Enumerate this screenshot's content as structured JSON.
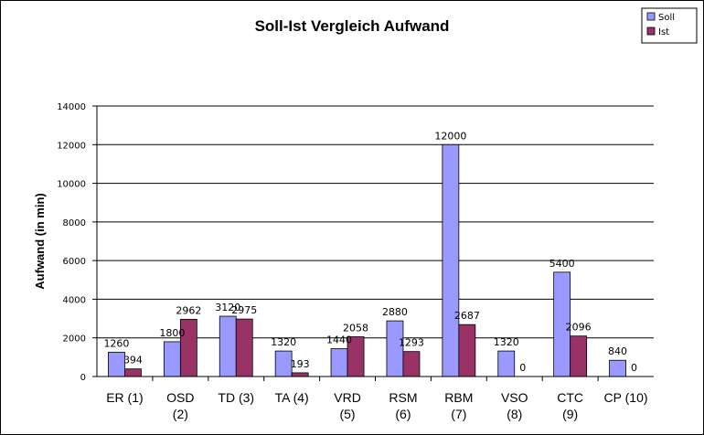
{
  "chart_data": {
    "type": "bar",
    "title": "Soll-Ist Vergleich Aufwand",
    "xlabel": "",
    "ylabel": "Aufwand (in min)",
    "ylim": [
      0,
      14000
    ],
    "yticks": [
      "0",
      "2000",
      "4000",
      "6000",
      "8000",
      "10000",
      "12000",
      "14000"
    ],
    "grid": true,
    "legend_position": "top-right",
    "categories": [
      [
        "ER (1)"
      ],
      [
        "OSD",
        "(2)"
      ],
      [
        "TD (3)"
      ],
      [
        "TA (4)"
      ],
      [
        "VRD",
        "(5)"
      ],
      [
        "RSM",
        "(6)"
      ],
      [
        "RBM",
        "(7)"
      ],
      [
        "VSO",
        "(8)"
      ],
      [
        "CTC",
        "(9)"
      ],
      [
        "CP (10)"
      ]
    ],
    "series": [
      {
        "name": "Soll",
        "color": "#9999ff",
        "values": [
          1260,
          1800,
          3120,
          1320,
          1440,
          2880,
          12000,
          1320,
          5400,
          840
        ]
      },
      {
        "name": "Ist",
        "color": "#993366",
        "values": [
          394,
          2962,
          2975,
          193,
          2058,
          1293,
          2687,
          0,
          2096,
          0
        ]
      }
    ]
  }
}
